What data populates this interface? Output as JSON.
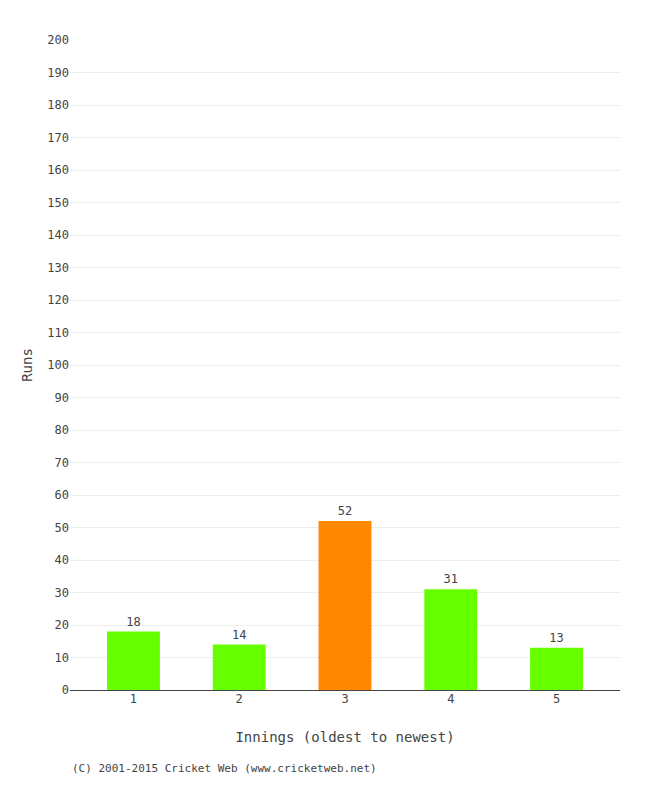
{
  "chart_data": {
    "type": "bar",
    "categories": [
      "1",
      "2",
      "3",
      "4",
      "5"
    ],
    "values": [
      18,
      14,
      52,
      31,
      13
    ],
    "colors": [
      "#66ff00",
      "#66ff00",
      "#ff8800",
      "#66ff00",
      "#66ff00"
    ],
    "data_labels": true,
    "xlabel": "Innings (oldest to newest)",
    "ylabel": "Runs",
    "ylim": [
      0,
      200
    ],
    "yticks": [
      0,
      10,
      20,
      30,
      40,
      50,
      60,
      70,
      80,
      90,
      100,
      110,
      120,
      130,
      140,
      150,
      160,
      170,
      180,
      190,
      200
    ],
    "grid": true,
    "annotations": [
      "(C) 2001-2015 Cricket Web (www.cricketweb.net)"
    ]
  }
}
